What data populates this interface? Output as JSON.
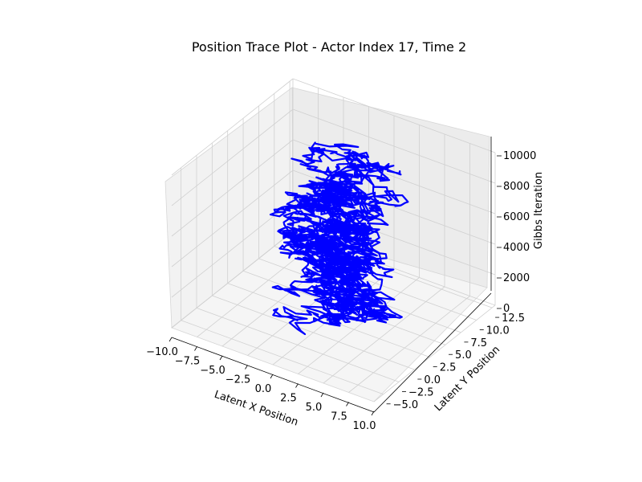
{
  "chart_data": {
    "type": "line3d",
    "title": "Position Trace Plot - Actor Index 17, Time 2",
    "xlabel": "Latent X Position",
    "ylabel": "Latent Y Position",
    "zlabel": "Gibbs Iteration",
    "xlim": [
      -10,
      10
    ],
    "ylim": [
      -6.5,
      13
    ],
    "zlim": [
      0,
      10000
    ],
    "x_ticks": [
      "−10.0",
      "−7.5",
      "−5.0",
      "−2.5",
      "0.0",
      "2.5",
      "5.0",
      "7.5",
      "10.0"
    ],
    "y_ticks": [
      "−5.0",
      "−2.5",
      "0.0",
      "2.5",
      "5.0",
      "7.5",
      "10.0",
      "12.5"
    ],
    "z_ticks": [
      "0",
      "2000",
      "4000",
      "6000",
      "8000",
      "10000"
    ],
    "grid": true,
    "series": [
      {
        "color": "#0000ff",
        "iterations": 10000,
        "x_range": [
          -6.5,
          9.5
        ],
        "y_range": [
          -3.0,
          8.0
        ]
      }
    ]
  }
}
